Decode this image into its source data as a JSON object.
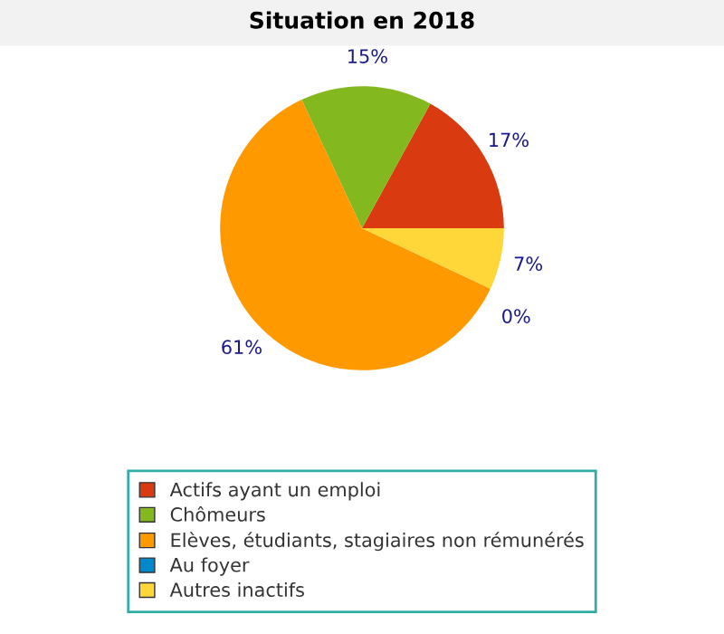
{
  "chart_data": {
    "type": "pie",
    "title": "Situation en 2018",
    "categories": [
      "Actifs ayant un emploi",
      "Chômeurs",
      "Elèves, étudiants, stagiaires non rémunérés",
      "Au foyer",
      "Autres inactifs"
    ],
    "values": [
      17,
      15,
      61,
      0,
      7
    ],
    "colors": [
      "#d93a0f",
      "#83b81f",
      "#ff9900",
      "#0088cc",
      "#ffd738"
    ],
    "value_labels": [
      "17%",
      "15%",
      "61%",
      "0%",
      "7%"
    ],
    "legend": "bottom"
  }
}
